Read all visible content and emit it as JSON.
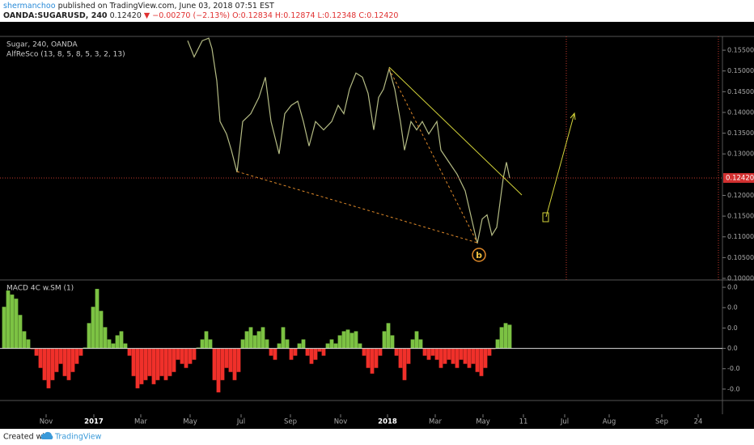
{
  "header": {
    "author": "shermanchoo",
    "published": "published on TradingView.com, June 03, 2018 07:51 EST",
    "symbol": "OANDA:SUGARUSD, 240",
    "last": "0.12420",
    "change": "▼ −0.00270 (−2.13%)",
    "ohlc": "O:0.12834 H:0.12874 L:0.12348 C:0.12420"
  },
  "footer": {
    "created": "Created with",
    "brand": "TradingView"
  },
  "chart_data": [
    {
      "type": "line",
      "title": "Sugar, 240, OANDA",
      "subtitle": "AlfReSco (13, 8, 5, 8, 5, 3, 2, 13)",
      "color": "#b4bb84",
      "x": [
        46.4,
        48,
        50,
        51.6,
        52.4,
        53.6,
        54.4,
        56,
        57.2,
        58.6,
        60,
        62,
        64,
        65.6,
        67,
        69,
        70.4,
        72,
        73.6,
        75,
        76.4,
        78,
        80,
        82,
        83.6,
        85,
        86.4,
        88,
        89.6,
        91,
        92.4,
        93.6,
        94.8,
        96.2,
        97.6,
        99,
        100,
        101.6,
        103,
        104.4,
        106,
        108,
        109,
        111,
        113,
        115,
        116.6,
        118,
        119.2,
        120.4,
        121.6,
        122.8,
        123.6,
        124.4,
        125.2,
        126
      ],
      "values": [
        0.1573,
        0.1534,
        0.1573,
        0.1579,
        0.1554,
        0.1476,
        0.1378,
        0.1348,
        0.1309,
        0.1256,
        0.1378,
        0.1397,
        0.1436,
        0.1485,
        0.1378,
        0.13,
        0.1397,
        0.1417,
        0.1427,
        0.1378,
        0.1319,
        0.1378,
        0.1358,
        0.1378,
        0.1417,
        0.1397,
        0.1456,
        0.1495,
        0.1485,
        0.1446,
        0.1358,
        0.1436,
        0.1456,
        0.1505,
        0.1456,
        0.1378,
        0.1309,
        0.1378,
        0.1358,
        0.1378,
        0.1348,
        0.1378,
        0.1309,
        0.128,
        0.1251,
        0.1211,
        0.1143,
        0.1084,
        0.1143,
        0.1153,
        0.1104,
        0.1123,
        0.1182,
        0.1241,
        0.128,
        0.1242
      ],
      "xlim": [
        0,
        178.6
      ],
      "ylim": [
        0.09961,
        0.15833
      ],
      "yticks": [
        {
          "value": 0.155,
          "label": "0.15500"
        },
        {
          "value": 0.15,
          "label": "0.15000"
        },
        {
          "value": 0.145,
          "label": "0.14500"
        },
        {
          "value": 0.14,
          "label": "0.14000"
        },
        {
          "value": 0.135,
          "label": "0.13500"
        },
        {
          "value": 0.13,
          "label": "0.13000"
        },
        {
          "value": 0.12,
          "label": "0.12000"
        },
        {
          "value": 0.115,
          "label": "0.11500"
        },
        {
          "value": 0.11,
          "label": "0.11000"
        },
        {
          "value": 0.105,
          "label": "0.10500"
        },
        {
          "value": 0.1,
          "label": "0.10000"
        }
      ],
      "last_price": {
        "value": 0.1242,
        "label": "0.12420"
      },
      "annotation": "b"
    },
    {
      "type": "bar",
      "title": "MACD 4C w.SM (1)",
      "up_color": "#7cc243",
      "down_color": "#f0302a",
      "x": [
        1,
        2,
        3,
        4,
        5,
        6,
        7,
        8,
        9,
        10,
        11,
        12,
        13,
        14,
        15,
        16,
        17,
        18,
        19,
        20,
        21,
        22,
        23,
        24,
        25,
        26,
        27,
        28,
        29,
        30,
        31,
        32,
        33,
        34,
        35,
        36,
        37,
        38,
        39,
        40,
        41,
        42,
        43,
        44,
        45,
        46,
        47,
        48,
        49,
        50,
        51,
        52,
        53,
        54,
        55,
        56,
        57,
        58,
        59,
        60,
        61,
        62,
        63,
        64,
        65,
        66,
        67,
        68,
        69,
        70,
        71,
        72,
        73,
        74,
        75,
        76,
        77,
        78,
        79,
        80,
        81,
        82,
        83,
        84,
        85,
        86,
        87,
        88,
        89,
        90,
        91,
        92,
        93,
        94,
        95,
        96,
        97,
        98,
        99,
        100,
        101,
        102,
        103,
        104,
        105,
        106,
        107,
        108,
        109,
        110,
        111,
        112,
        113,
        114,
        115,
        116,
        117,
        118,
        119,
        120,
        121,
        122,
        123,
        124,
        125,
        126
      ],
      "values": [
        0.00204,
        0.00284,
        0.00264,
        0.00244,
        0.00164,
        0.00084,
        0.00044,
        -4e-05,
        -0.00036,
        -0.00096,
        -0.00156,
        -0.00196,
        -0.00156,
        -0.00116,
        -0.00076,
        -0.00136,
        -0.00156,
        -0.00116,
        -0.00076,
        -0.00036,
        4e-05,
        0.00124,
        0.00204,
        0.00292,
        0.00184,
        0.00104,
        0.00044,
        0.00024,
        0.00064,
        0.00084,
        0.00024,
        -0.00036,
        -0.00136,
        -0.00196,
        -0.00176,
        -0.00156,
        -0.00136,
        -0.00176,
        -0.00156,
        -0.00136,
        -0.00156,
        -0.00136,
        -0.00116,
        -0.00056,
        -0.00076,
        -0.00096,
        -0.00076,
        -0.00056,
        4e-05,
        0.00044,
        0.00084,
        0.00044,
        -0.00156,
        -0.00216,
        -0.00156,
        -0.00096,
        -0.00116,
        -0.00156,
        -0.00116,
        0.00044,
        0.00084,
        0.00104,
        0.00064,
        0.00084,
        0.00104,
        0.00044,
        -0.00036,
        -0.00056,
        0.00024,
        0.00104,
        0.00044,
        -0.00056,
        -0.00036,
        0.00024,
        0.00044,
        -0.00036,
        -0.00076,
        -0.00056,
        -0.00016,
        -0.00036,
        0.00024,
        0.00044,
        0.00024,
        0.00064,
        0.00084,
        0.00092,
        0.00076,
        0.00084,
        0.00024,
        -0.00036,
        -0.00096,
        -0.00124,
        -0.00096,
        -0.00036,
        0.00084,
        0.00124,
        0.00064,
        -0.00036,
        -0.00096,
        -0.00156,
        -0.00076,
        0.00044,
        0.00084,
        0.00044,
        -0.00036,
        -0.00056,
        -0.00036,
        -0.00056,
        -0.00096,
        -0.00076,
        -0.00056,
        -0.00076,
        -0.00096,
        -0.00056,
        -0.00076,
        -0.00096,
        -0.00076,
        -0.00116,
        -0.00136,
        -0.00096,
        -0.00036,
        -4e-05,
        0.00044,
        0.00104,
        0.00124,
        0.00116
      ],
      "xlim": [
        0,
        178.6
      ],
      "ylim": [
        -0.00256,
        0.00336
      ],
      "yticks": [
        {
          "value": 0.003,
          "label": "0.0"
        },
        {
          "value": 0.002,
          "label": "0.0"
        },
        {
          "value": 0.001,
          "label": "0.0"
        },
        {
          "value": 0,
          "label": "0.0"
        },
        {
          "value": -0.001,
          "label": "-0.0"
        },
        {
          "value": -0.002,
          "label": "-0.0"
        }
      ],
      "xticks": [
        {
          "value": 11.4,
          "label": "Nov"
        },
        {
          "value": 23.2,
          "label": "2017"
        },
        {
          "value": 34.8,
          "label": "Mar"
        },
        {
          "value": 47,
          "label": "May"
        },
        {
          "value": 59.6,
          "label": "Jul"
        },
        {
          "value": 71.8,
          "label": "Sep"
        },
        {
          "value": 84.2,
          "label": "Nov"
        },
        {
          "value": 95.8,
          "label": "2018"
        },
        {
          "value": 107.6,
          "label": "Mar"
        },
        {
          "value": 119.4,
          "label": "May"
        },
        {
          "value": 129.4,
          "label": "11"
        },
        {
          "value": 139.6,
          "label": "Jul"
        },
        {
          "value": 150.6,
          "label": "Aug"
        },
        {
          "value": 163.6,
          "label": "Sep"
        },
        {
          "value": 172.6,
          "label": "24"
        }
      ]
    }
  ]
}
